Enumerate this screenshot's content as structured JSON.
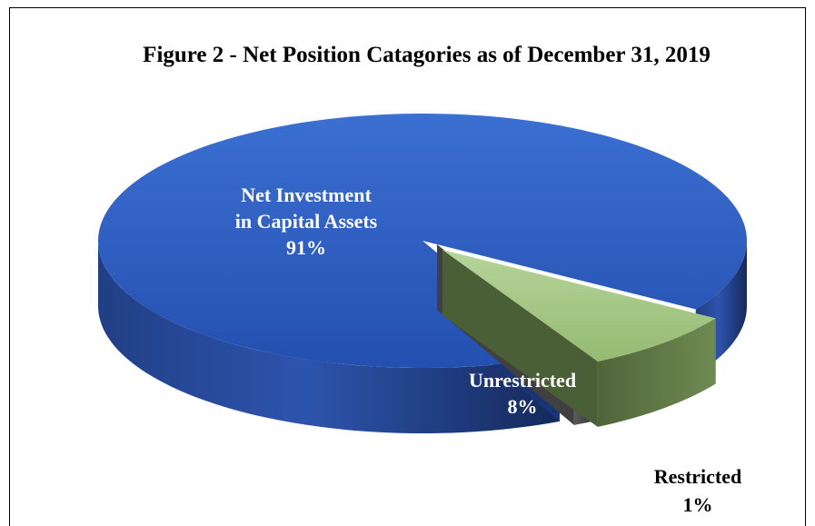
{
  "chart_data": {
    "type": "pie",
    "title": "Figure 2 - Net Position Catagories as of December 31, 2019",
    "style": "3d-exploded",
    "slices": [
      {
        "lines": [
          "Net Investment",
          "in Capital Assets",
          "91%"
        ],
        "value": 91,
        "color": "#2a5bbf",
        "label_color": "#ffffff"
      },
      {
        "lines": [
          "Unrestricted",
          "8%"
        ],
        "value": 8,
        "color": "#a6c987",
        "label_color": "#ffffff"
      },
      {
        "lines": [
          "Restricted",
          "1%"
        ],
        "value": 1,
        "color": "#8a8a8a",
        "label_color": "#000000"
      }
    ]
  }
}
